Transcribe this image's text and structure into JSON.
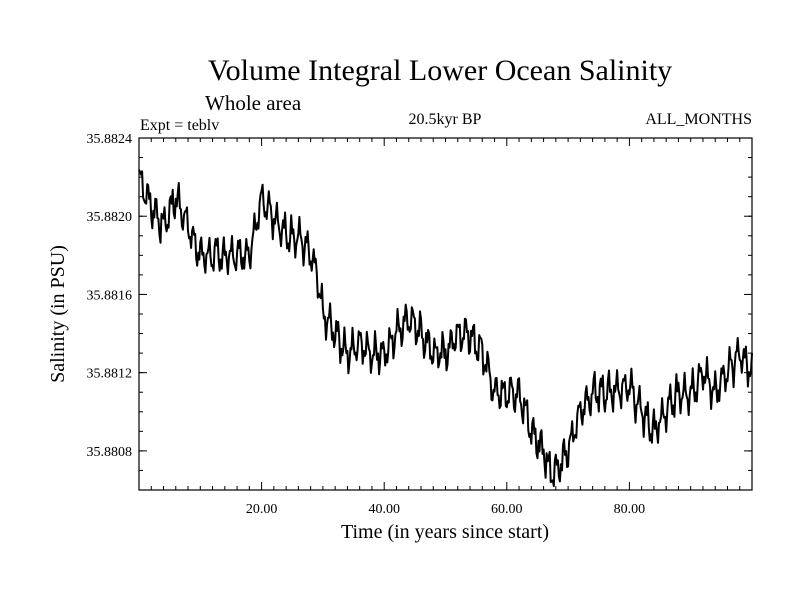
{
  "chart_data": {
    "type": "line",
    "title": "Volume Integral Lower Ocean Salinity",
    "subtitle": "Whole area",
    "experiment_label": "Expt = teblv",
    "period_label": "20.5kyr BP",
    "months_label": "ALL_MONTHS",
    "xlabel": "Time (in years since start)",
    "ylabel": "Salinity (in PSU)",
    "xlim": [
      0,
      100
    ],
    "ylim": [
      35.8806,
      35.8824
    ],
    "x_ticks": [
      20,
      40,
      60,
      80
    ],
    "x_tick_labels": [
      "20.00",
      "40.00",
      "60.00",
      "80.00"
    ],
    "y_ticks": [
      35.8808,
      35.8812,
      35.8816,
      35.882,
      35.8824
    ],
    "y_tick_labels": [
      "35.8808",
      "35.8812",
      "35.8816",
      "35.8820",
      "35.8824"
    ],
    "grid": false,
    "series": [
      {
        "name": "salinity",
        "x": [
          0,
          2,
          4,
          6,
          8,
          10,
          12,
          14,
          16,
          18,
          20,
          22,
          24,
          26,
          28,
          29,
          30,
          32,
          34,
          36,
          38,
          40,
          42,
          44,
          46,
          48,
          50,
          52,
          54,
          56,
          58,
          60,
          62,
          64,
          66,
          67,
          68,
          70,
          72,
          74,
          76,
          78,
          80,
          82,
          84,
          86,
          88,
          90,
          92,
          94,
          96,
          98,
          100
        ],
        "values": [
          35.8822,
          35.88205,
          35.88195,
          35.8821,
          35.88195,
          35.8818,
          35.8818,
          35.8818,
          35.8818,
          35.8818,
          35.8821,
          35.882,
          35.8819,
          35.8819,
          35.8818,
          35.8817,
          35.8815,
          35.8814,
          35.8813,
          35.88135,
          35.8813,
          35.8813,
          35.8814,
          35.88148,
          35.8814,
          35.8813,
          35.8813,
          35.8814,
          35.8814,
          35.8813,
          35.8811,
          35.8811,
          35.8811,
          35.8809,
          35.8808,
          35.8807,
          35.8807,
          35.8808,
          35.881,
          35.8811,
          35.8811,
          35.88112,
          35.88113,
          35.881,
          35.8809,
          35.881,
          35.8811,
          35.8811,
          35.8812,
          35.8811,
          35.8812,
          35.8813,
          35.8812
        ]
      }
    ]
  }
}
